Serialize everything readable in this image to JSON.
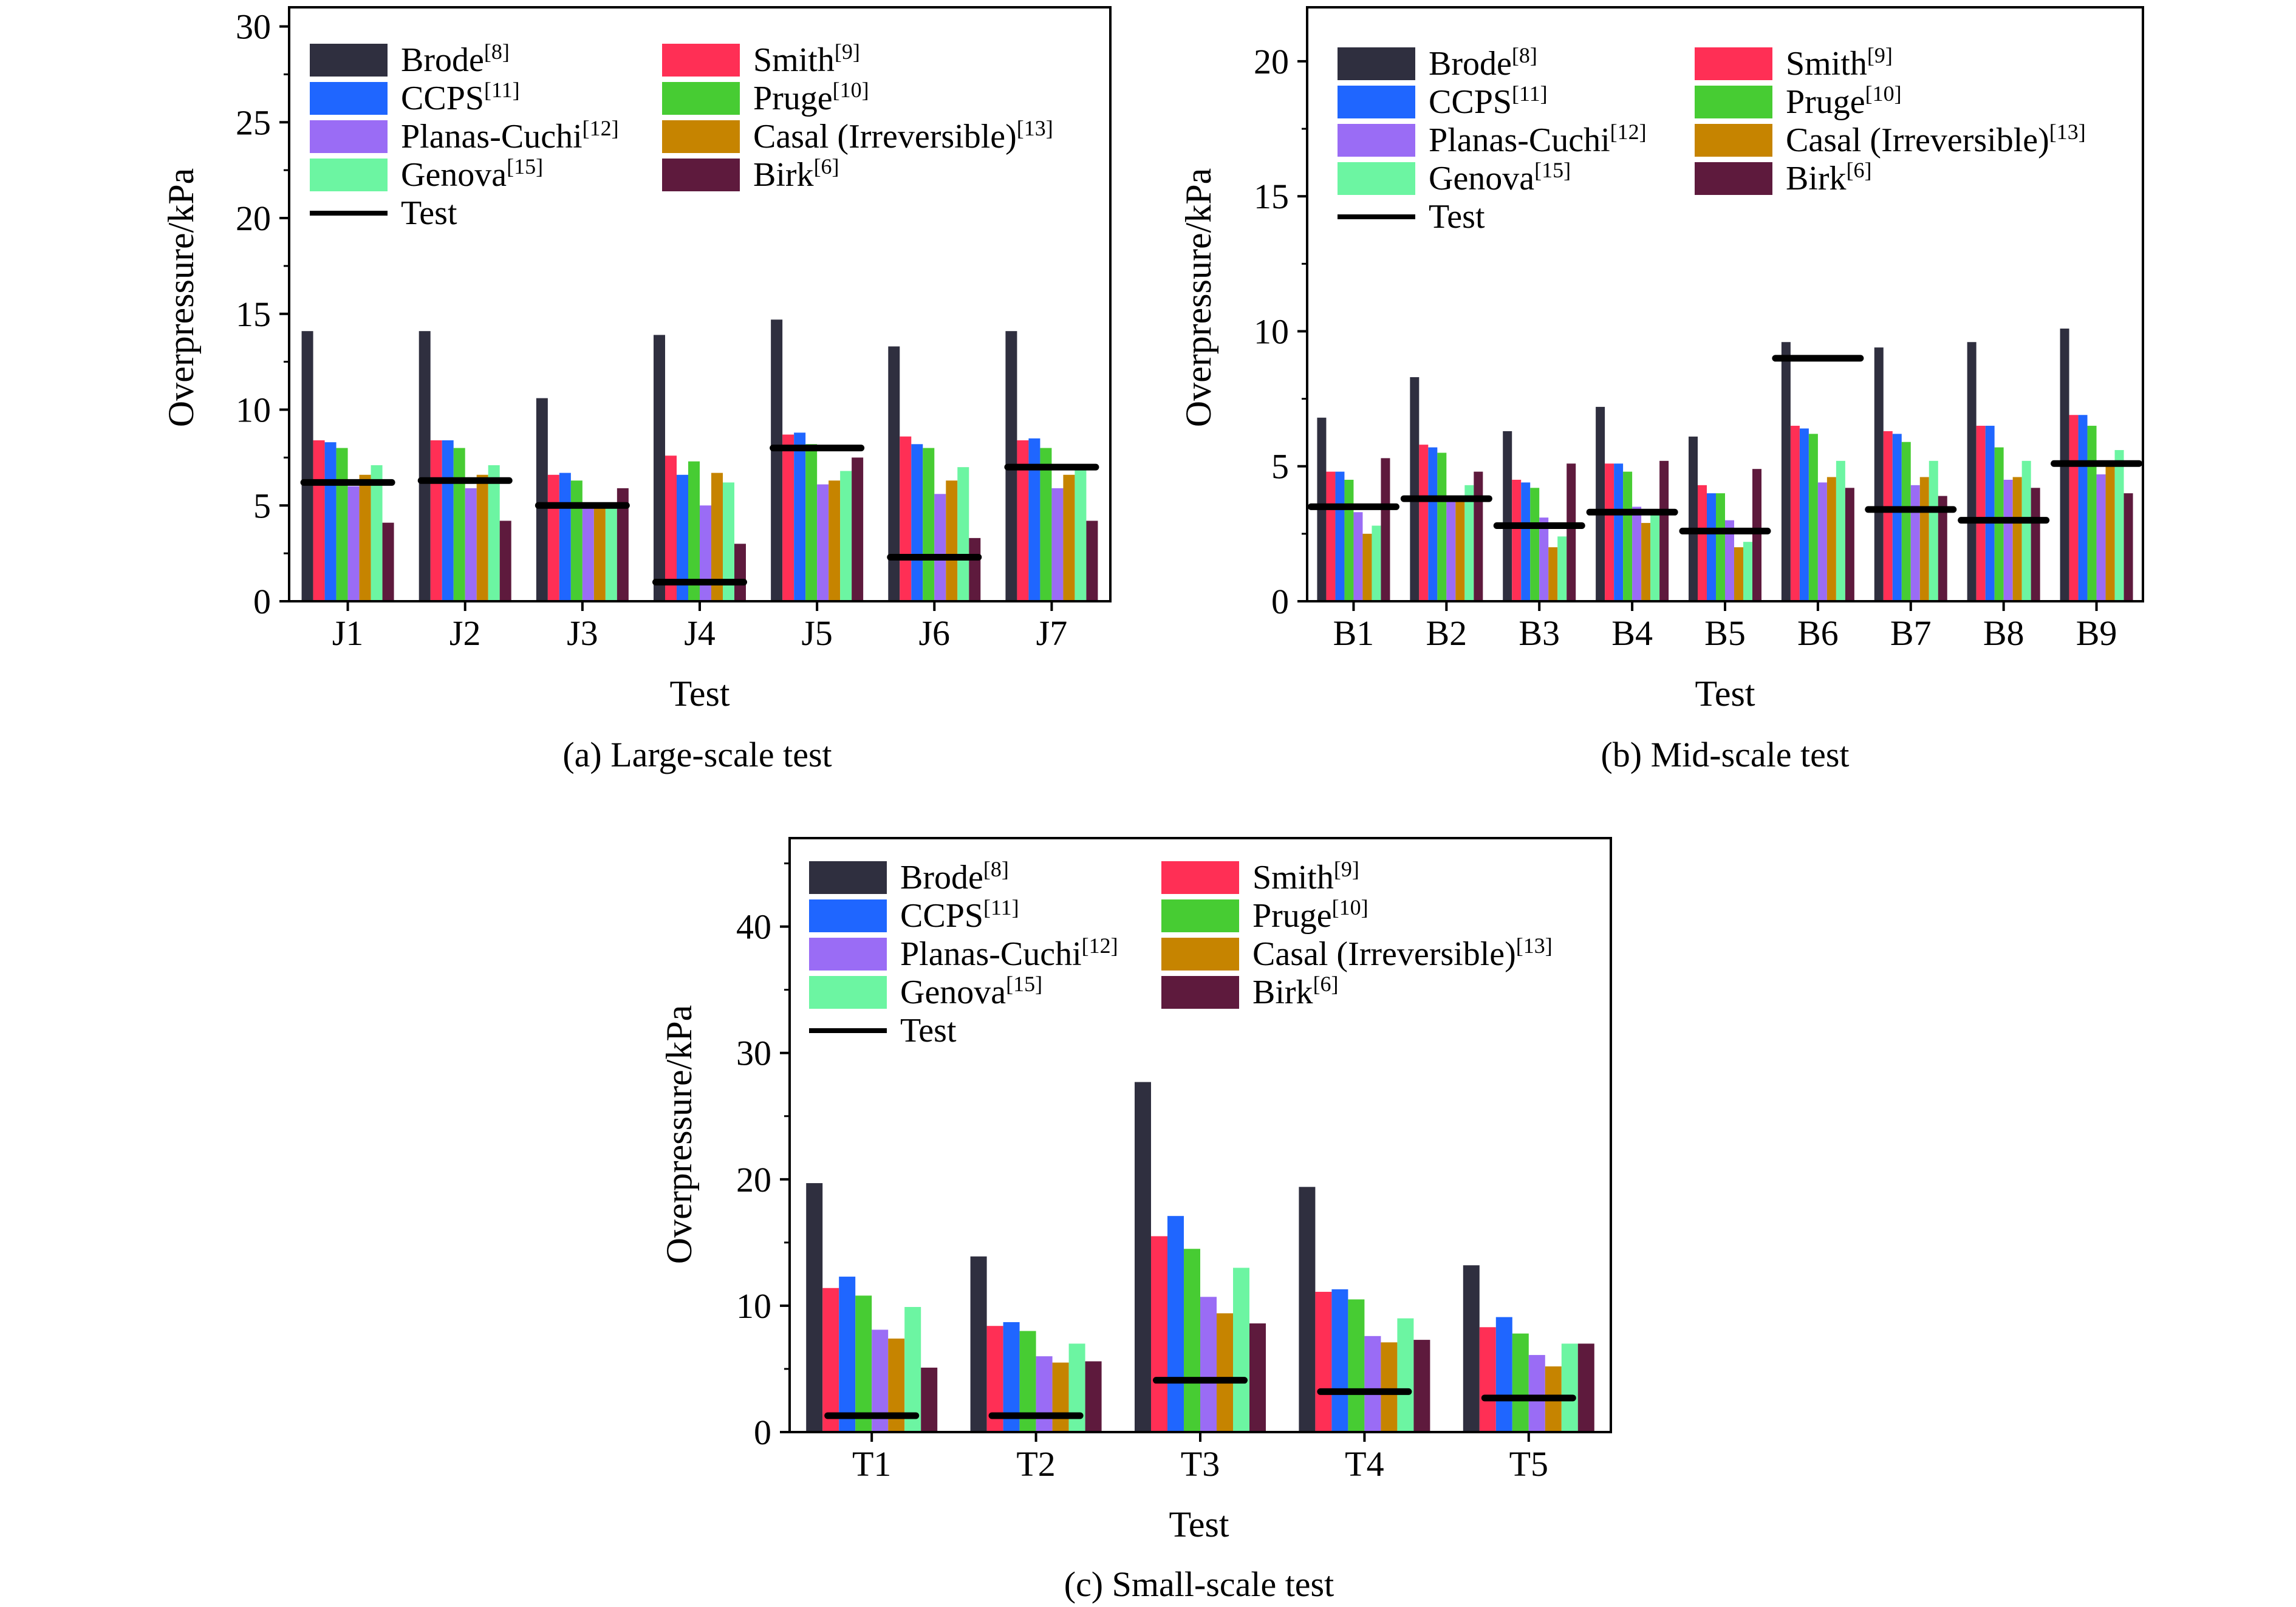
{
  "figure": {
    "legend_entries": [
      {
        "key": "brode",
        "label": "Brode",
        "ref": "[8]",
        "color": "#2f2f3f"
      },
      {
        "key": "smith",
        "label": "Smith",
        "ref": "[9]",
        "color": "#ff2f55"
      },
      {
        "key": "ccps",
        "label": "CCPS",
        "ref": "[11]",
        "color": "#1f66ff"
      },
      {
        "key": "pruge",
        "label": "Pruge",
        "ref": "[10]",
        "color": "#47cc33"
      },
      {
        "key": "planas",
        "label": "Planas-Cuchi",
        "ref": "[12]",
        "color": "#9a6cf5"
      },
      {
        "key": "casal",
        "label": "Casal (Irreversible)",
        "ref": "[13]",
        "color": "#c68400"
      },
      {
        "key": "genova",
        "label": "Genova",
        "ref": "[15]",
        "color": "#6cf5a2"
      },
      {
        "key": "birk",
        "label": "Birk",
        "ref": "[6]",
        "color": "#5e1a3d"
      }
    ],
    "test_label": "Test",
    "test_color": "#000000"
  },
  "chart_data": [
    {
      "type": "bar",
      "caption": "(a) Large-scale test",
      "xlabel": "Test",
      "ylabel": "Overpressure/kPa",
      "ylim": [
        0,
        31
      ],
      "yticks": [
        0,
        5,
        10,
        15,
        20,
        25,
        30
      ],
      "categories": [
        "J1",
        "J2",
        "J3",
        "J4",
        "J5",
        "J6",
        "J7"
      ],
      "series": [
        {
          "name": "Brode[8]",
          "values": [
            14.1,
            14.1,
            10.6,
            13.9,
            14.7,
            13.3,
            14.1
          ]
        },
        {
          "name": "Smith[9]",
          "values": [
            8.4,
            8.4,
            6.6,
            7.6,
            8.7,
            8.6,
            8.4
          ]
        },
        {
          "name": "CCPS[11]",
          "values": [
            8.3,
            8.4,
            6.7,
            6.6,
            8.8,
            8.2,
            8.5
          ]
        },
        {
          "name": "Pruge[10]",
          "values": [
            8.0,
            8.0,
            6.3,
            7.3,
            8.2,
            8.0,
            8.0
          ]
        },
        {
          "name": "Planas-Cuchi[12]",
          "values": [
            6.0,
            5.9,
            5.0,
            5.0,
            6.1,
            5.6,
            5.9
          ]
        },
        {
          "name": "Casal (Irreversible)[13]",
          "values": [
            6.6,
            6.6,
            5.0,
            6.7,
            6.3,
            6.3,
            6.6
          ]
        },
        {
          "name": "Genova[15]",
          "values": [
            7.1,
            7.1,
            5.0,
            6.2,
            6.8,
            7.0,
            7.0
          ]
        },
        {
          "name": "Birk[6]",
          "values": [
            4.1,
            4.2,
            5.9,
            3.0,
            7.5,
            3.3,
            4.2
          ]
        }
      ],
      "test": [
        6.2,
        6.3,
        5.0,
        1.0,
        8.0,
        2.3,
        7.0
      ]
    },
    {
      "type": "bar",
      "caption": "(b) Mid-scale test",
      "xlabel": "Test",
      "ylabel": "Overpressure/kPa",
      "ylim": [
        0,
        22
      ],
      "yticks": [
        0,
        5,
        10,
        15,
        20
      ],
      "categories": [
        "B1",
        "B2",
        "B3",
        "B4",
        "B5",
        "B6",
        "B7",
        "B8",
        "B9"
      ],
      "series": [
        {
          "name": "Brode[8]",
          "values": [
            6.8,
            8.3,
            6.3,
            7.2,
            6.1,
            9.6,
            9.4,
            9.6,
            10.1
          ]
        },
        {
          "name": "Smith[9]",
          "values": [
            4.8,
            5.8,
            4.5,
            5.1,
            4.3,
            6.5,
            6.3,
            6.5,
            6.9
          ]
        },
        {
          "name": "CCPS[11]",
          "values": [
            4.8,
            5.7,
            4.4,
            5.1,
            4.0,
            6.4,
            6.2,
            6.5,
            6.9
          ]
        },
        {
          "name": "Pruge[10]",
          "values": [
            4.5,
            5.5,
            4.2,
            4.8,
            4.0,
            6.2,
            5.9,
            5.7,
            6.5
          ]
        },
        {
          "name": "Planas-Cuchi[12]",
          "values": [
            3.3,
            3.9,
            3.1,
            3.5,
            3.0,
            4.4,
            4.3,
            4.5,
            4.7
          ]
        },
        {
          "name": "Casal (Irreversible)[13]",
          "values": [
            2.5,
            3.8,
            2.0,
            2.9,
            2.0,
            4.6,
            4.6,
            4.6,
            5.0
          ]
        },
        {
          "name": "Genova[15]",
          "values": [
            2.8,
            4.3,
            2.4,
            3.2,
            2.2,
            5.2,
            5.2,
            5.2,
            5.6
          ]
        },
        {
          "name": "Birk[6]",
          "values": [
            5.3,
            4.8,
            5.1,
            5.2,
            4.9,
            4.2,
            3.9,
            4.2,
            4.0
          ]
        }
      ],
      "test": [
        3.5,
        3.8,
        2.8,
        3.3,
        2.6,
        9.0,
        3.4,
        3.0,
        5.1
      ]
    },
    {
      "type": "bar",
      "caption": "(c) Small-scale test",
      "xlabel": "Test",
      "ylabel": "Overpressure/kPa",
      "ylim": [
        0,
        47
      ],
      "yticks": [
        0,
        10,
        20,
        30,
        40
      ],
      "categories": [
        "T1",
        "T2",
        "T3",
        "T4",
        "T5"
      ],
      "series": [
        {
          "name": "Brode[8]",
          "values": [
            19.7,
            13.9,
            27.7,
            19.4,
            13.2
          ]
        },
        {
          "name": "Smith[9]",
          "values": [
            11.4,
            8.4,
            15.5,
            11.1,
            8.3
          ]
        },
        {
          "name": "CCPS[11]",
          "values": [
            12.3,
            8.7,
            17.1,
            11.3,
            9.1
          ]
        },
        {
          "name": "Pruge[10]",
          "values": [
            10.8,
            8.0,
            14.5,
            10.5,
            7.8
          ]
        },
        {
          "name": "Planas-Cuchi[12]",
          "values": [
            8.1,
            6.0,
            10.7,
            7.6,
            6.1
          ]
        },
        {
          "name": "Casal (Irreversible)[13]",
          "values": [
            7.4,
            5.5,
            9.4,
            7.1,
            5.2
          ]
        },
        {
          "name": "Genova[15]",
          "values": [
            9.9,
            7.0,
            13.0,
            9.0,
            7.0
          ]
        },
        {
          "name": "Birk[6]",
          "values": [
            5.1,
            5.6,
            8.6,
            7.3,
            7.0
          ]
        }
      ],
      "test": [
        1.3,
        1.3,
        4.1,
        3.2,
        2.7
      ]
    }
  ]
}
